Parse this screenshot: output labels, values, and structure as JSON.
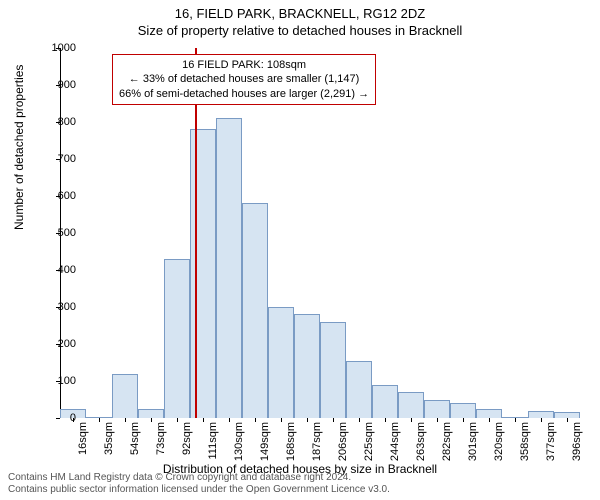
{
  "title": "16, FIELD PARK, BRACKNELL, RG12 2DZ",
  "subtitle": "Size of property relative to detached houses in Bracknell",
  "chart": {
    "type": "bar",
    "x_categories": [
      "16sqm",
      "35sqm",
      "54sqm",
      "73sqm",
      "92sqm",
      "111sqm",
      "130sqm",
      "149sqm",
      "168sqm",
      "187sqm",
      "206sqm",
      "225sqm",
      "244sqm",
      "263sqm",
      "282sqm",
      "301sqm",
      "320sqm",
      "358sqm",
      "377sqm",
      "396sqm"
    ],
    "values": [
      25,
      0,
      120,
      25,
      430,
      780,
      810,
      580,
      300,
      280,
      260,
      155,
      90,
      70,
      50,
      40,
      25,
      0,
      20,
      15
    ],
    "ylim": [
      0,
      1000
    ],
    "ytick_step": 100,
    "ylabel": "Number of detached properties",
    "xlabel": "Distribution of detached houses by size in Bracknell",
    "bar_fill": "#d6e4f2",
    "bar_stroke": "#7a9bc4",
    "marker": {
      "position_index": 5.2,
      "color": "#c00000"
    },
    "callout": {
      "line1": "16 FIELD PARK: 108sqm",
      "line2": "← 33% of detached houses are smaller (1,147)",
      "line3": "66% of semi-detached houses are larger (2,291) →",
      "border_color": "#c00000"
    },
    "axis_color": "#000000",
    "background": "#ffffff"
  },
  "footer": {
    "line1": "Contains HM Land Registry data © Crown copyright and database right 2024.",
    "line2": "Contains public sector information licensed under the Open Government Licence v3.0."
  }
}
